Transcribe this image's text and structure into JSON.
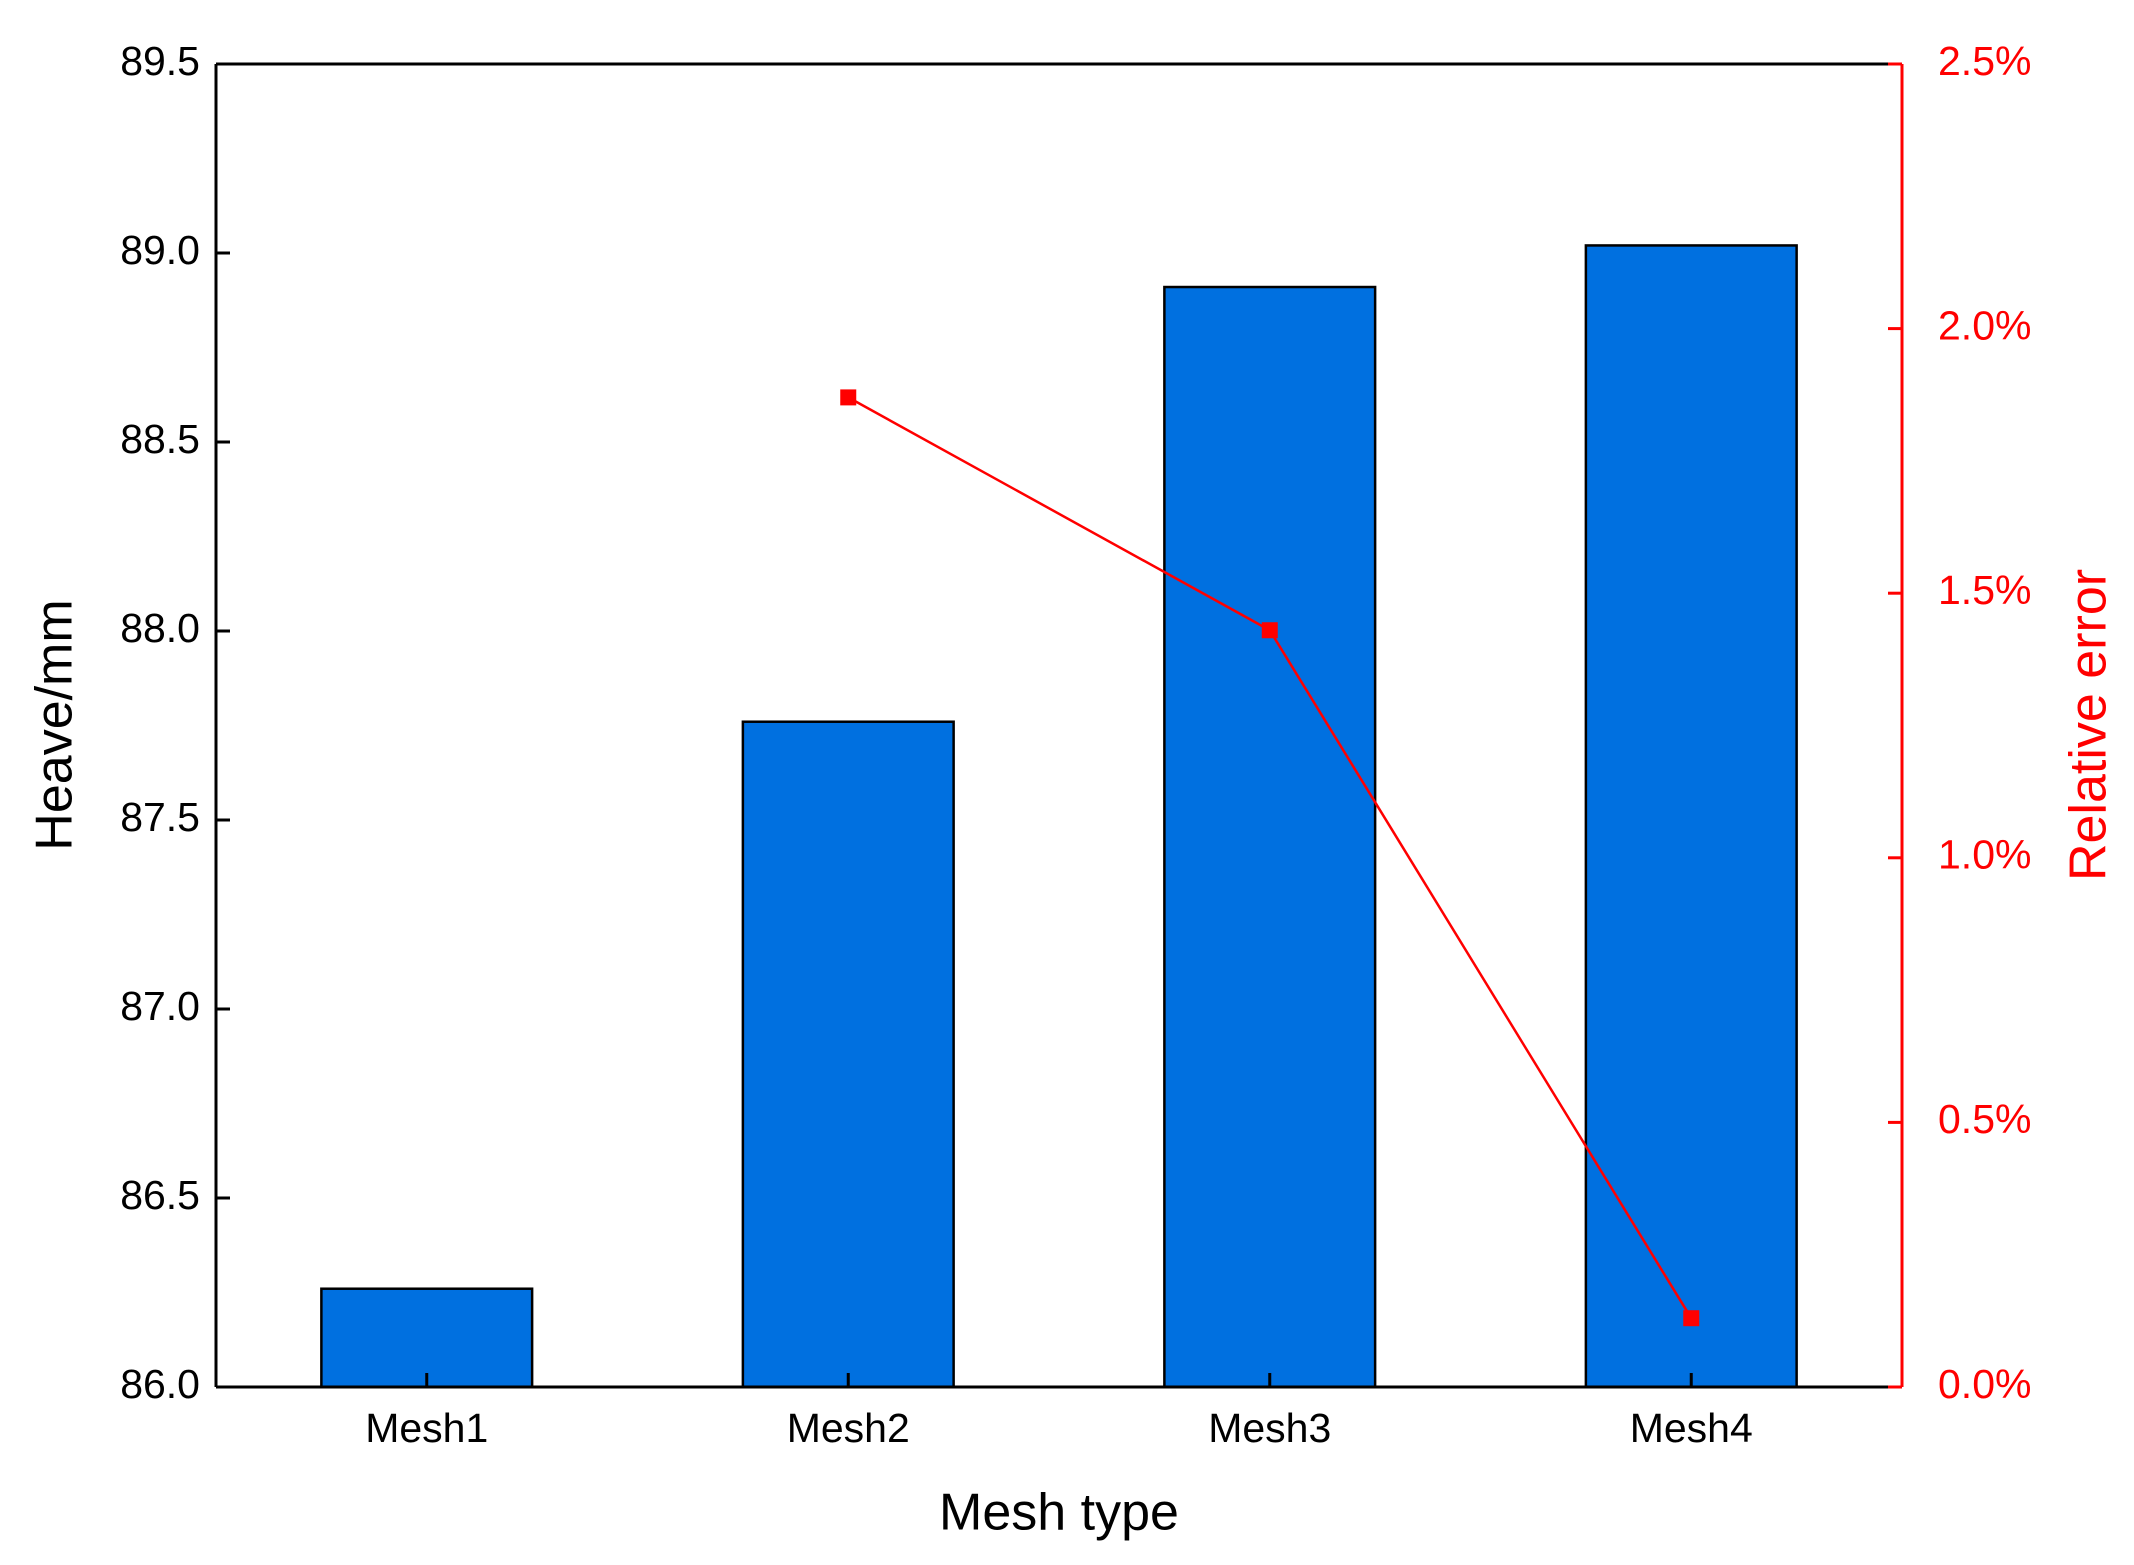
{
  "chart_data": {
    "type": "bar",
    "xlabel": "Mesh type",
    "ylabel": "Heave/mm",
    "y2label": "Relative error",
    "categories": [
      "Mesh1",
      "Mesh2",
      "Mesh3",
      "Mesh4"
    ],
    "series": [
      {
        "type": "bar",
        "color": "#0070e0",
        "values": [
          86.26,
          87.76,
          88.91,
          89.02
        ]
      },
      {
        "type": "line",
        "color": "#ff0000",
        "axis": "y2",
        "values": [
          null,
          1.87,
          1.43,
          0.13
        ]
      }
    ],
    "ylim": [
      86.0,
      89.5
    ],
    "yticks": [
      {
        "value": 86.0,
        "label": "86.0"
      },
      {
        "value": 86.5,
        "label": "86.5"
      },
      {
        "value": 87.0,
        "label": "87.0"
      },
      {
        "value": 87.5,
        "label": "87.5"
      },
      {
        "value": 88.0,
        "label": "88.0"
      },
      {
        "value": 88.5,
        "label": "88.5"
      },
      {
        "value": 89.0,
        "label": "89.0"
      },
      {
        "value": 89.5,
        "label": "89.5"
      }
    ],
    "y2lim": [
      0,
      2.5
    ],
    "y2ticks": [
      {
        "value": 0,
        "label": "0.0%"
      },
      {
        "value": 0.5,
        "label": "0.5%"
      },
      {
        "value": 1.0,
        "label": "1.0%"
      },
      {
        "value": 1.5,
        "label": "1.5%"
      },
      {
        "value": 2.0,
        "label": "2.0%"
      },
      {
        "value": 2.5,
        "label": "2.5%"
      }
    ],
    "y2color": "#ff0000",
    "grid": false
  }
}
